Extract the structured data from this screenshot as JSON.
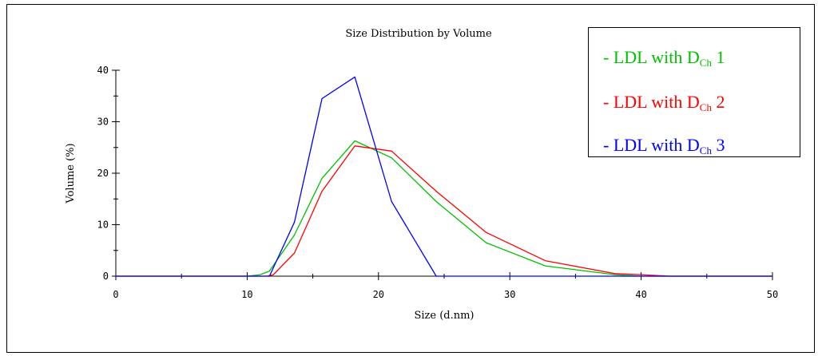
{
  "chart_data": {
    "type": "line",
    "title": "Size Distribution by Volume",
    "xlabel": "Size (d.nm)",
    "ylabel": "Volume (%)",
    "xlim": [
      0,
      50
    ],
    "ylim": [
      0,
      40
    ],
    "x_ticks": [
      "0",
      "10",
      "20",
      "30",
      "40",
      "50"
    ],
    "y_ticks": [
      "0",
      "10",
      "20",
      "30",
      "40"
    ],
    "grid": false,
    "legend_position": "top-right",
    "series": [
      {
        "name": "- LDL with DCh 1",
        "color": "#00c000",
        "x": [
          0,
          10,
          11,
          11.7,
          13.6,
          15.7,
          18.2,
          21,
          24.4,
          28.2,
          32.7,
          38,
          40,
          41,
          50
        ],
        "y": [
          0,
          0,
          0.3,
          1.0,
          8,
          19,
          26.3,
          23,
          14.5,
          6.5,
          2,
          0.3,
          0,
          0,
          0
        ]
      },
      {
        "name": "- LDL with DCh 2",
        "color": "#ff0000",
        "x": [
          0,
          10,
          11.5,
          12,
          13.6,
          15.7,
          18.2,
          21,
          24.4,
          28.2,
          32.7,
          38,
          40,
          42.2,
          50
        ],
        "y": [
          0,
          0,
          0,
          0.3,
          4.5,
          16.5,
          25.3,
          24.3,
          16.5,
          8.5,
          3,
          0.5,
          0.3,
          0,
          0
        ]
      },
      {
        "name": "- LDL with DCh 3",
        "color": "#0000ff",
        "x": [
          0,
          11.7,
          13.6,
          15.7,
          18.2,
          21,
          24.4,
          50
        ],
        "y": [
          0,
          0,
          10.5,
          34.5,
          38.7,
          14.5,
          0,
          0
        ]
      }
    ]
  },
  "legend": {
    "items": [
      {
        "prefix": "- LDL with D",
        "sub": "Ch",
        "suffix": " 1",
        "color": "#00c000"
      },
      {
        "prefix": "- LDL with D",
        "sub": "Ch",
        "suffix": " 2",
        "color": "#ff0000"
      },
      {
        "prefix": "- LDL with D",
        "sub": "Ch",
        "suffix": " 3",
        "color": "#0000ff"
      }
    ]
  }
}
